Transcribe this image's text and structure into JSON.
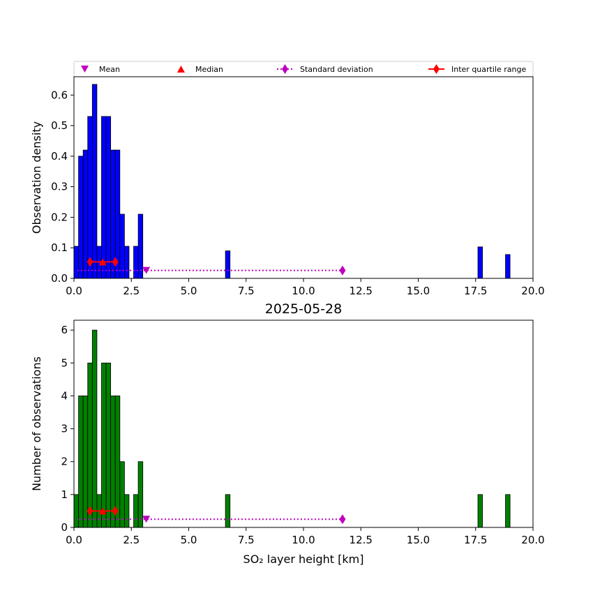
{
  "chart_data": [
    {
      "type": "bar",
      "title": "",
      "xlabel": "",
      "ylabel": "Observation density",
      "xlim": [
        0,
        20
      ],
      "ylim": [
        0,
        0.66
      ],
      "xticks": [
        "0.0",
        "2.5",
        "5.0",
        "7.5",
        "10.0",
        "12.5",
        "15.0",
        "17.5",
        "20.0"
      ],
      "yticks": [
        "0.0",
        "0.1",
        "0.2",
        "0.3",
        "0.4",
        "0.5",
        "0.6"
      ],
      "bar_color": "#0000ff",
      "bins": [
        {
          "x0": 0.0,
          "x1": 0.2,
          "v": 0.105
        },
        {
          "x0": 0.2,
          "x1": 0.4,
          "v": 0.4
        },
        {
          "x0": 0.4,
          "x1": 0.6,
          "v": 0.42
        },
        {
          "x0": 0.6,
          "x1": 0.8,
          "v": 0.53
        },
        {
          "x0": 0.8,
          "x1": 1.0,
          "v": 0.635
        },
        {
          "x0": 1.0,
          "x1": 1.2,
          "v": 0.105
        },
        {
          "x0": 1.2,
          "x1": 1.4,
          "v": 0.53
        },
        {
          "x0": 1.4,
          "x1": 1.6,
          "v": 0.53
        },
        {
          "x0": 1.6,
          "x1": 1.8,
          "v": 0.42
        },
        {
          "x0": 1.8,
          "x1": 2.0,
          "v": 0.42
        },
        {
          "x0": 2.0,
          "x1": 2.2,
          "v": 0.21
        },
        {
          "x0": 2.2,
          "x1": 2.4,
          "v": 0.105
        },
        {
          "x0": 2.6,
          "x1": 2.8,
          "v": 0.105
        },
        {
          "x0": 2.8,
          "x1": 3.0,
          "v": 0.21
        },
        {
          "x0": 6.6,
          "x1": 6.8,
          "v": 0.09
        },
        {
          "x0": 17.6,
          "x1": 17.8,
          "v": 0.103
        },
        {
          "x0": 18.8,
          "x1": 19.0,
          "v": 0.078
        }
      ],
      "stats": {
        "mean_x": 3.15,
        "mean_y": 0.026,
        "sd_start": 0.15,
        "sd_end": 11.7,
        "median_x": 1.25,
        "median_y": 0.054,
        "iqr_low": 0.7,
        "iqr_high": 1.8
      }
    },
    {
      "type": "bar",
      "title": "2025-05-28",
      "xlabel": "SO₂ layer height [km]",
      "ylabel": "Number of observations",
      "xlim": [
        0,
        20
      ],
      "ylim": [
        0,
        6.3
      ],
      "xticks": [
        "0.0",
        "2.5",
        "5.0",
        "7.5",
        "10.0",
        "12.5",
        "15.0",
        "17.5",
        "20.0"
      ],
      "yticks": [
        "0",
        "1",
        "2",
        "3",
        "4",
        "5",
        "6"
      ],
      "bar_color": "#008000",
      "bins": [
        {
          "x0": 0.0,
          "x1": 0.2,
          "v": 1
        },
        {
          "x0": 0.2,
          "x1": 0.4,
          "v": 4
        },
        {
          "x0": 0.4,
          "x1": 0.6,
          "v": 4
        },
        {
          "x0": 0.6,
          "x1": 0.8,
          "v": 5
        },
        {
          "x0": 0.8,
          "x1": 1.0,
          "v": 6
        },
        {
          "x0": 1.0,
          "x1": 1.2,
          "v": 1
        },
        {
          "x0": 1.2,
          "x1": 1.4,
          "v": 5
        },
        {
          "x0": 1.4,
          "x1": 1.6,
          "v": 5
        },
        {
          "x0": 1.6,
          "x1": 1.8,
          "v": 4
        },
        {
          "x0": 1.8,
          "x1": 2.0,
          "v": 4
        },
        {
          "x0": 2.0,
          "x1": 2.2,
          "v": 2
        },
        {
          "x0": 2.2,
          "x1": 2.4,
          "v": 1
        },
        {
          "x0": 2.6,
          "x1": 2.8,
          "v": 1
        },
        {
          "x0": 2.8,
          "x1": 3.0,
          "v": 2
        },
        {
          "x0": 6.6,
          "x1": 6.8,
          "v": 1
        },
        {
          "x0": 17.6,
          "x1": 17.8,
          "v": 1
        },
        {
          "x0": 18.8,
          "x1": 19.0,
          "v": 1
        }
      ],
      "stats": {
        "mean_x": 3.15,
        "mean_y": 0.25,
        "sd_start": 0.15,
        "sd_end": 11.7,
        "median_x": 1.25,
        "median_y": 0.5,
        "iqr_low": 0.7,
        "iqr_high": 1.8
      }
    }
  ],
  "legend": {
    "placement": "top",
    "items": [
      {
        "label": "Mean",
        "marker": "triangle-down",
        "color": "#bf00bf"
      },
      {
        "label": "Median",
        "marker": "triangle-up",
        "color": "#ff0000"
      },
      {
        "label": "Standard deviation",
        "marker": "diamond-dotted",
        "color": "#bf00bf"
      },
      {
        "label": "Inter quartile range",
        "marker": "diamond-line",
        "color": "#ff0000"
      }
    ]
  },
  "colors": {
    "mean": "#bf00bf",
    "median": "#ff0000",
    "sd": "#bf00bf",
    "iqr": "#ff0000"
  }
}
